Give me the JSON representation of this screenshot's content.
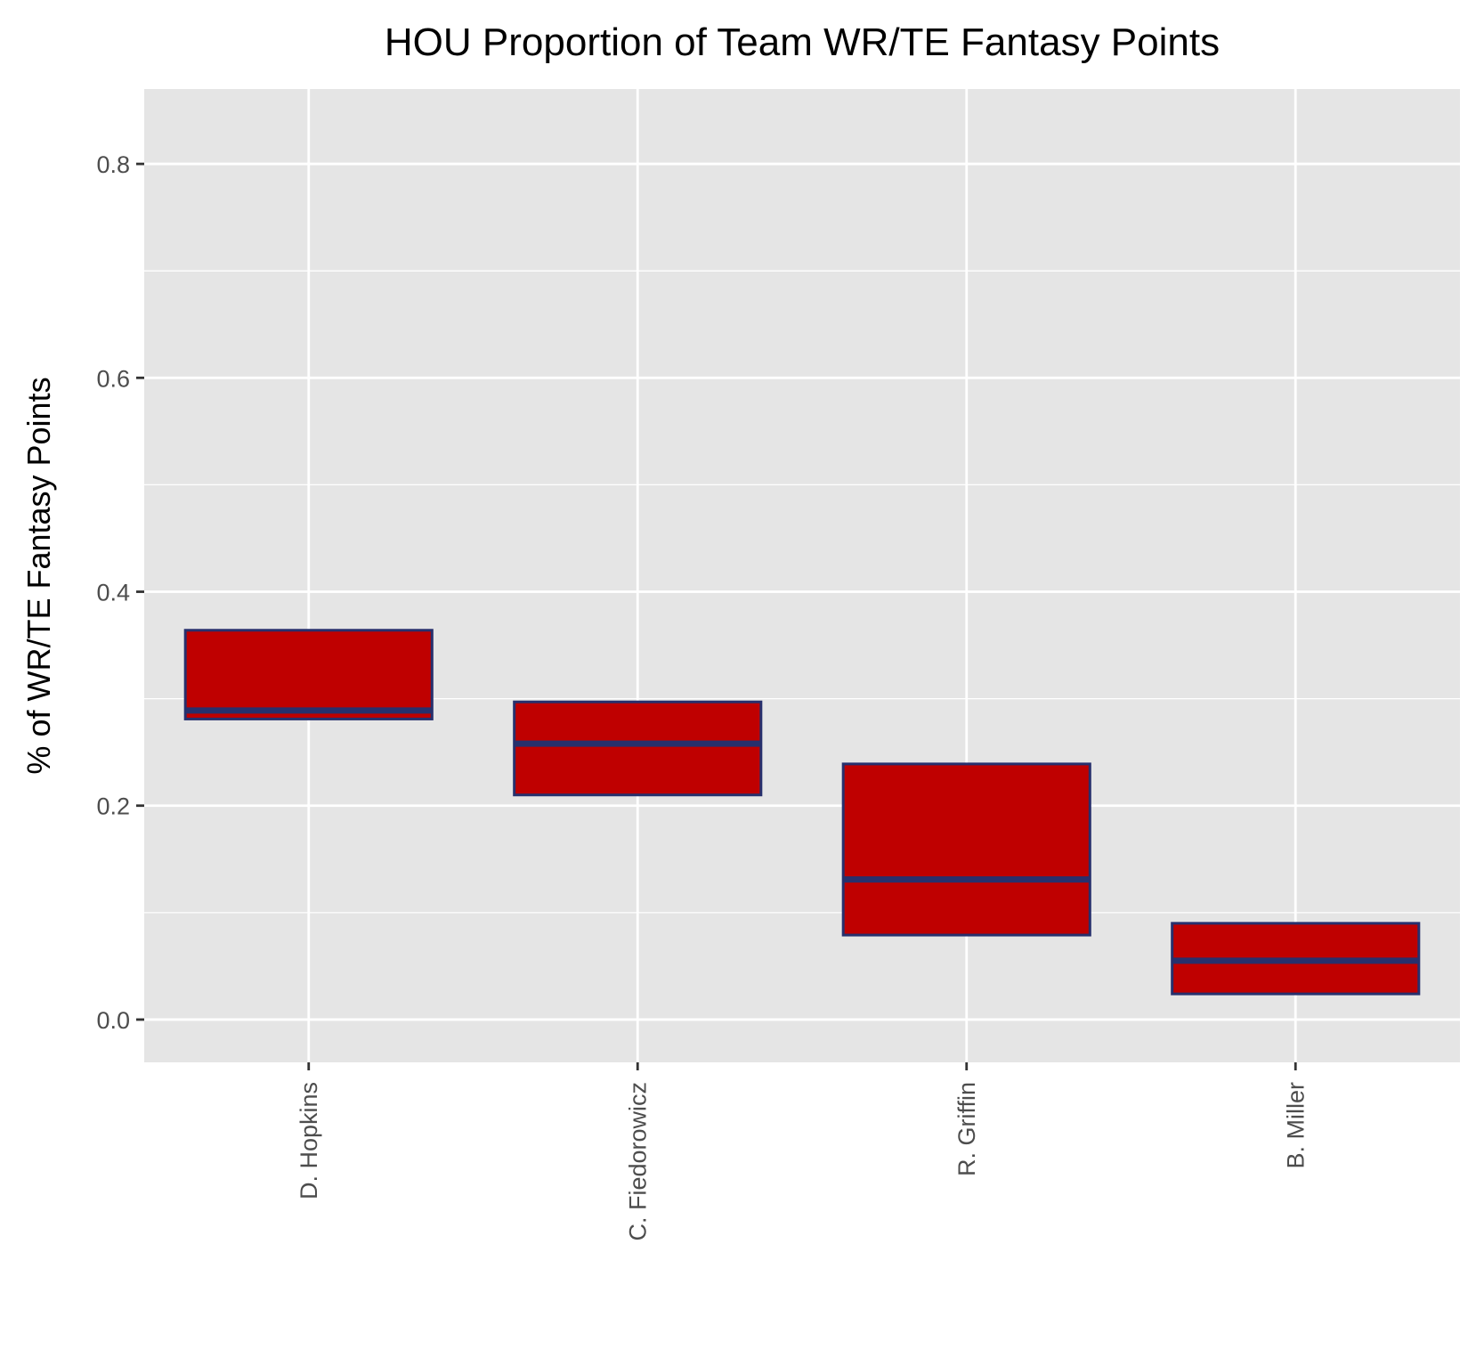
{
  "chart_data": {
    "type": "boxplot",
    "title": "HOU Proportion of Team WR/TE Fantasy Points",
    "xlabel": "",
    "ylabel": "% of WR/TE Fantasy Points",
    "ylim": [
      -0.04,
      0.87
    ],
    "yticks": [
      0.0,
      0.2,
      0.4,
      0.6,
      0.8
    ],
    "ytick_labels": [
      "0.0",
      "0.2",
      "0.4",
      "0.6",
      "0.8"
    ],
    "yminor_ticks": [
      0.1,
      0.3,
      0.5,
      0.7
    ],
    "categories": [
      "D. Hopkins",
      "C. Fiedorowicz",
      "R. Griffin",
      "B. Miller"
    ],
    "boxes": [
      {
        "category": "D. Hopkins",
        "q1": 0.281,
        "median": 0.289,
        "q3": 0.364
      },
      {
        "category": "C. Fiedorowicz",
        "q1": 0.21,
        "median": 0.258,
        "q3": 0.297
      },
      {
        "category": "R. Griffin",
        "q1": 0.079,
        "median": 0.131,
        "q3": 0.239
      },
      {
        "category": "B. Miller",
        "q1": 0.024,
        "median": 0.055,
        "q3": 0.09
      }
    ],
    "grid": true,
    "colors": {
      "fill": "#bf0000",
      "outline": "#27306d",
      "panel": "#e5e5e5",
      "grid": "#ffffff"
    }
  }
}
